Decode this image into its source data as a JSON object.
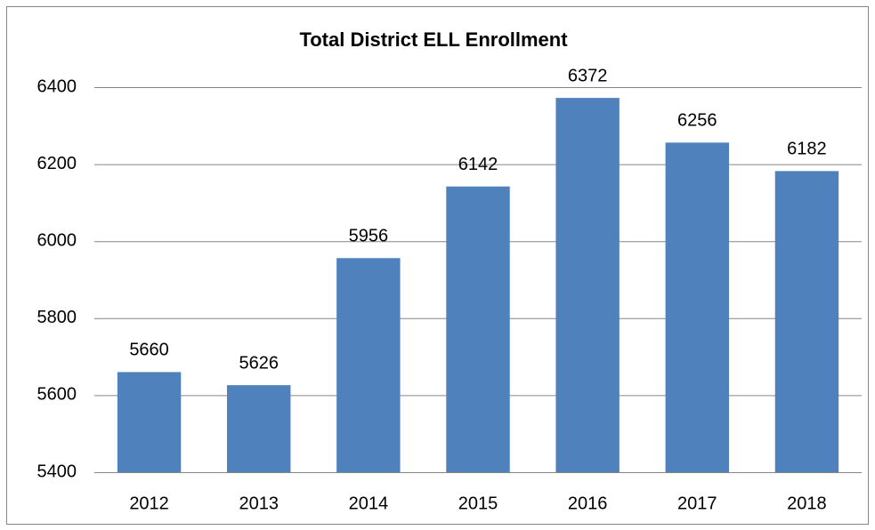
{
  "chart_data": {
    "type": "bar",
    "title": "Total District ELL Enrollment",
    "categories": [
      "2012",
      "2013",
      "2014",
      "2015",
      "2016",
      "2017",
      "2018"
    ],
    "values": [
      5660,
      5626,
      5956,
      6142,
      6372,
      6256,
      6182
    ],
    "color": "#4f81bd",
    "ylim": [
      5400,
      6400
    ],
    "yticks": [
      5400,
      5600,
      5800,
      6000,
      6200,
      6400
    ],
    "grid": true
  }
}
